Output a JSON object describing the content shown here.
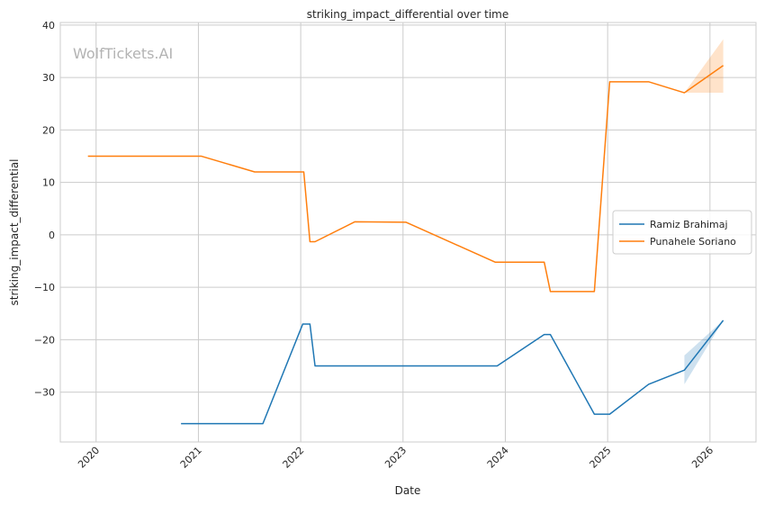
{
  "chart_data": {
    "type": "line",
    "title": "striking_impact_differential over time",
    "xlabel": "Date",
    "ylabel": "striking_impact_differential",
    "watermark": "WolfTickets.AI",
    "xlim": [
      2019.65,
      2026.45
    ],
    "ylim": [
      -39.5,
      40.5
    ],
    "x_ticks": [
      2020,
      2021,
      2022,
      2023,
      2024,
      2025,
      2026
    ],
    "y_ticks": [
      -30,
      -20,
      -10,
      0,
      10,
      20,
      30,
      40
    ],
    "grid": true,
    "legend_position": "center-right",
    "series": [
      {
        "name": "Ramiz Brahimaj",
        "color": "#1f77b4",
        "points": [
          [
            2020.83,
            -36.0
          ],
          [
            2021.63,
            -36.0
          ],
          [
            2022.02,
            -17.0
          ],
          [
            2022.09,
            -17.0
          ],
          [
            2022.14,
            -25.0
          ],
          [
            2023.92,
            -25.0
          ],
          [
            2024.38,
            -19.0
          ],
          [
            2024.44,
            -19.0
          ],
          [
            2024.87,
            -34.2
          ],
          [
            2025.02,
            -34.2
          ],
          [
            2025.4,
            -28.5
          ],
          [
            2025.75,
            -25.8
          ],
          [
            2026.13,
            -16.3
          ]
        ],
        "band": {
          "x": [
            2025.75,
            2026.13
          ],
          "lower": [
            -28.5,
            -16.3
          ],
          "upper": [
            -23.0,
            -16.3
          ]
        }
      },
      {
        "name": "Punahele Soriano",
        "color": "#ff7f0e",
        "points": [
          [
            2019.92,
            15.0
          ],
          [
            2021.03,
            15.0
          ],
          [
            2021.55,
            12.0
          ],
          [
            2022.03,
            12.0
          ],
          [
            2022.09,
            -1.3
          ],
          [
            2022.14,
            -1.3
          ],
          [
            2022.53,
            2.5
          ],
          [
            2023.03,
            2.4
          ],
          [
            2023.9,
            -5.2
          ],
          [
            2024.38,
            -5.2
          ],
          [
            2024.44,
            -10.8
          ],
          [
            2024.87,
            -10.8
          ],
          [
            2025.02,
            29.2
          ],
          [
            2025.4,
            29.2
          ],
          [
            2025.75,
            27.1
          ],
          [
            2026.13,
            32.3
          ]
        ],
        "band": {
          "x": [
            2025.75,
            2026.13
          ],
          "lower": [
            27.1,
            27.1
          ],
          "upper": [
            27.1,
            37.3
          ]
        }
      }
    ]
  }
}
